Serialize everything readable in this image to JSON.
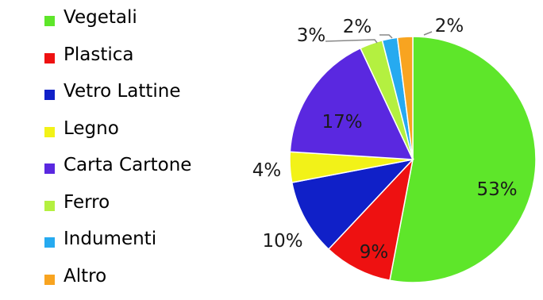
{
  "chart_data": {
    "type": "pie",
    "categories": [
      "Vegetali",
      "Plastica",
      "Vetro Lattine",
      "Legno",
      "Carta Cartone",
      "Ferro",
      "Indumenti",
      "Altro"
    ],
    "values": [
      53,
      9,
      10,
      4,
      17,
      3,
      2,
      2
    ],
    "data_labels": [
      "53%",
      "9%",
      "10%",
      "4%",
      "17%",
      "3%",
      "2%",
      "2%"
    ],
    "colors": [
      "#5ee62a",
      "#ee1111",
      "#1020c8",
      "#f2f218",
      "#5a28e0",
      "#b4f040",
      "#26aaf0",
      "#f8a420"
    ],
    "legend_placement": "left",
    "start_angle_from_top": "clockwise"
  }
}
